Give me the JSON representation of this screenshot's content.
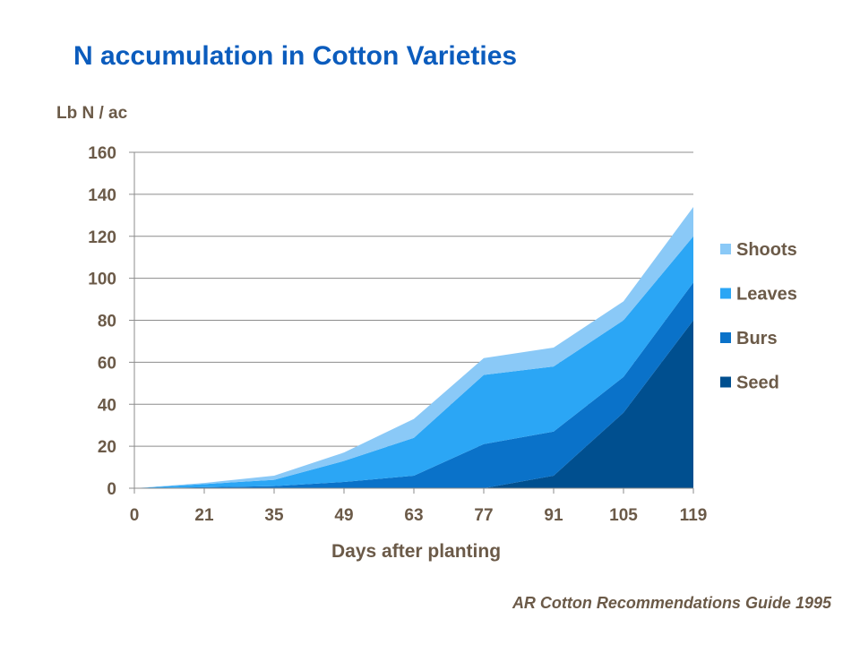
{
  "title": "N accumulation in Cotton Varieties",
  "ylabel": "Lb N / ac",
  "xlabel": "Days after planting",
  "source": "AR Cotton Recommendations Guide 1995",
  "chart_data": {
    "type": "area",
    "stacked": true,
    "title": "N accumulation in Cotton Varieties",
    "xlabel": "Days after planting",
    "ylabel": "Lb N / ac",
    "x": [
      0,
      21,
      35,
      49,
      63,
      77,
      91,
      105,
      119
    ],
    "ylim": [
      0,
      160
    ],
    "yticks": [
      0,
      20,
      40,
      60,
      80,
      100,
      120,
      140,
      160
    ],
    "grid": true,
    "legend_position": "right",
    "series": [
      {
        "name": "Seed",
        "color": "#004f8f",
        "values": [
          0,
          0,
          0,
          0,
          0,
          0,
          6,
          36,
          80
        ]
      },
      {
        "name": "Burs",
        "color": "#0a72c9",
        "values": [
          0,
          0.5,
          1,
          3,
          6,
          21,
          21,
          17,
          18
        ]
      },
      {
        "name": "Leaves",
        "color": "#2ba6f5",
        "values": [
          0,
          1.5,
          3,
          10,
          18,
          33,
          31,
          27,
          22
        ]
      },
      {
        "name": "Shoots",
        "color": "#8ac9f7",
        "values": [
          0,
          0.5,
          2,
          4,
          9,
          8,
          9,
          9,
          14
        ]
      }
    ]
  }
}
